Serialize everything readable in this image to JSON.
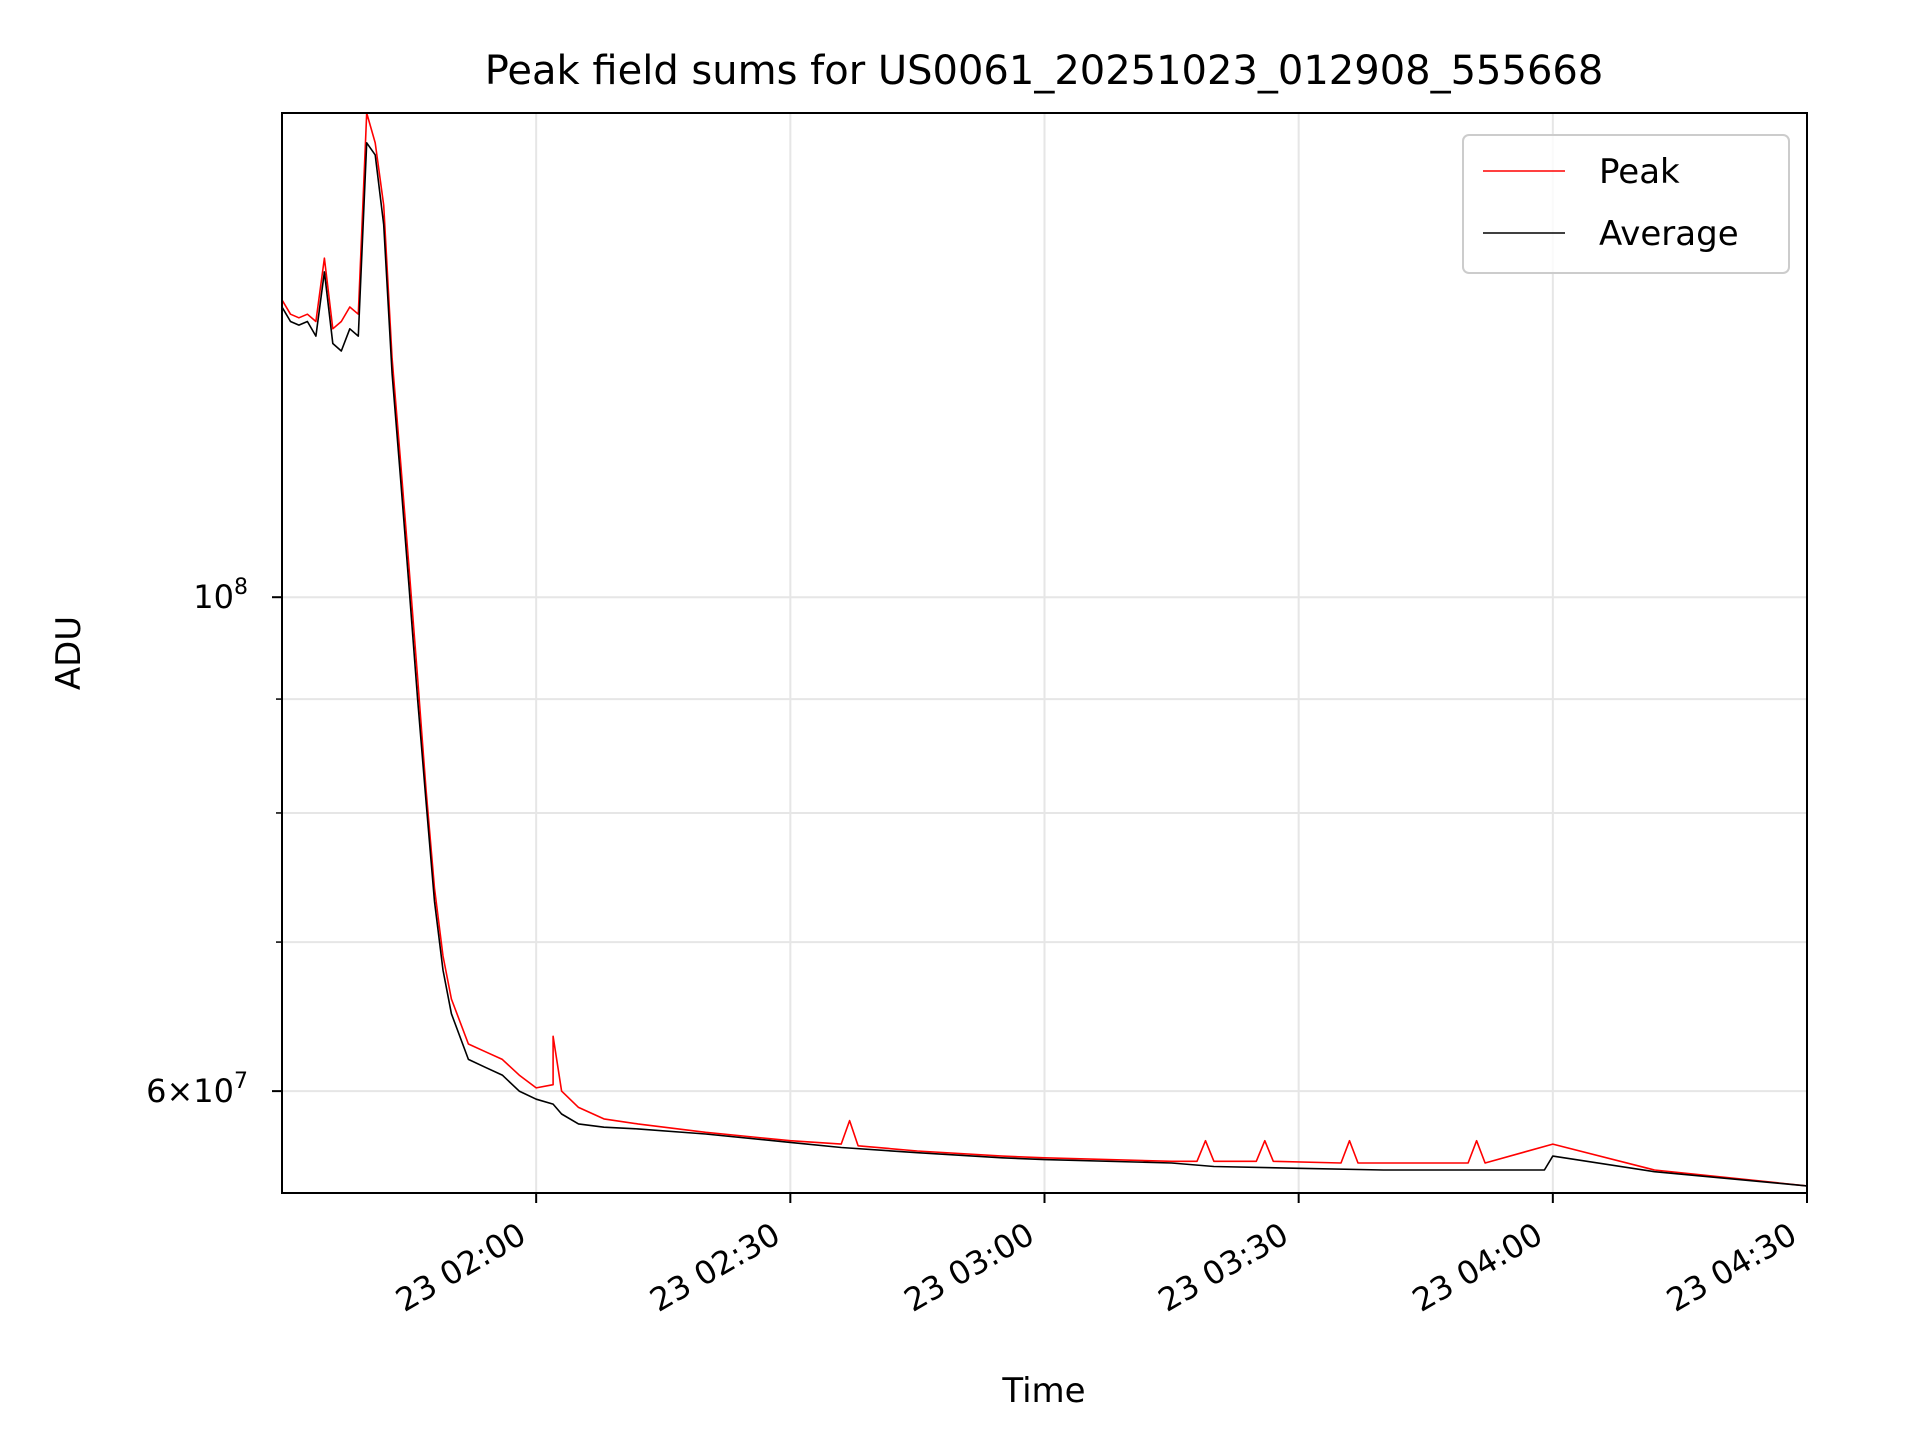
{
  "chart_data": {
    "type": "line",
    "title": "Peak field sums for US0061_20251023_012908_555668",
    "xlabel": "Time",
    "ylabel": "ADU",
    "yscale": "log",
    "xlim": [
      "2025-10-23T01:30",
      "2025-10-23T04:30"
    ],
    "ylim": [
      54000000,
      165000000
    ],
    "x_ticks": [
      {
        "value": "2025-10-23T02:00",
        "label": "23 02:00"
      },
      {
        "value": "2025-10-23T02:30",
        "label": "23 02:30"
      },
      {
        "value": "2025-10-23T03:00",
        "label": "23 03:00"
      },
      {
        "value": "2025-10-23T03:30",
        "label": "23 03:30"
      },
      {
        "value": "2025-10-23T04:00",
        "label": "23 04:00"
      },
      {
        "value": "2025-10-23T04:30",
        "label": "23 04:30"
      }
    ],
    "y_major_ticks": [
      {
        "value": 100000000,
        "mantissa": "",
        "base": "10",
        "exp": "8"
      },
      {
        "value": 60000000,
        "mantissa": "6×",
        "base": "10",
        "exp": "7"
      }
    ],
    "y_minor_gridlines": [
      70000000,
      80000000,
      90000000
    ],
    "grid": true,
    "legend_position": "top-right",
    "series": [
      {
        "name": "Peak",
        "color": "#ff0000",
        "x": [
          "2025-10-23T01:30",
          "2025-10-23T01:31",
          "2025-10-23T01:32",
          "2025-10-23T01:33",
          "2025-10-23T01:34",
          "2025-10-23T01:35",
          "2025-10-23T01:36",
          "2025-10-23T01:37",
          "2025-10-23T01:38",
          "2025-10-23T01:39",
          "2025-10-23T01:40",
          "2025-10-23T01:41",
          "2025-10-23T01:42",
          "2025-10-23T01:43",
          "2025-10-23T01:44",
          "2025-10-23T01:45",
          "2025-10-23T01:46",
          "2025-10-23T01:47",
          "2025-10-23T01:48",
          "2025-10-23T01:49",
          "2025-10-23T01:50",
          "2025-10-23T01:52",
          "2025-10-23T01:54",
          "2025-10-23T01:56",
          "2025-10-23T01:58",
          "2025-10-23T02:00",
          "2025-10-23T02:02",
          "2025-10-23T02:02",
          "2025-10-23T02:03",
          "2025-10-23T02:05",
          "2025-10-23T02:08",
          "2025-10-23T02:12",
          "2025-10-23T02:20",
          "2025-10-23T02:30",
          "2025-10-23T02:36",
          "2025-10-23T02:37",
          "2025-10-23T02:38",
          "2025-10-23T02:45",
          "2025-10-23T02:55",
          "2025-10-23T03:00",
          "2025-10-23T03:15",
          "2025-10-23T03:18",
          "2025-10-23T03:19",
          "2025-10-23T03:20",
          "2025-10-23T03:25",
          "2025-10-23T03:26",
          "2025-10-23T03:27",
          "2025-10-23T03:35",
          "2025-10-23T03:36",
          "2025-10-23T03:37",
          "2025-10-23T03:50",
          "2025-10-23T03:51",
          "2025-10-23T03:52",
          "2025-10-23T04:00",
          "2025-10-23T04:12",
          "2025-10-23T04:30"
        ],
        "y": [
          136000000,
          134000000,
          133500000,
          134000000,
          133000000,
          142000000,
          132000000,
          133000000,
          135000000,
          134000000,
          165000000,
          160000000,
          150000000,
          128000000,
          115000000,
          103000000,
          92000000,
          82000000,
          74000000,
          69000000,
          66000000,
          63000000,
          62500000,
          62000000,
          61000000,
          60200000,
          60400000,
          63500000,
          60000000,
          59000000,
          58300000,
          58000000,
          57500000,
          57000000,
          56800000,
          58200000,
          56700000,
          56400000,
          56100000,
          56000000,
          55800000,
          55800000,
          57000000,
          55800000,
          55800000,
          57000000,
          55800000,
          55700000,
          57000000,
          55700000,
          55700000,
          57000000,
          55700000,
          56800000,
          55300000,
          54400000
        ]
      },
      {
        "name": "Average",
        "color": "#000000",
        "x": [
          "2025-10-23T01:30",
          "2025-10-23T01:31",
          "2025-10-23T01:32",
          "2025-10-23T01:33",
          "2025-10-23T01:34",
          "2025-10-23T01:35",
          "2025-10-23T01:36",
          "2025-10-23T01:37",
          "2025-10-23T01:38",
          "2025-10-23T01:39",
          "2025-10-23T01:40",
          "2025-10-23T01:41",
          "2025-10-23T01:42",
          "2025-10-23T01:43",
          "2025-10-23T01:44",
          "2025-10-23T01:45",
          "2025-10-23T01:46",
          "2025-10-23T01:47",
          "2025-10-23T01:48",
          "2025-10-23T01:49",
          "2025-10-23T01:50",
          "2025-10-23T01:52",
          "2025-10-23T01:54",
          "2025-10-23T01:56",
          "2025-10-23T01:58",
          "2025-10-23T02:00",
          "2025-10-23T02:02",
          "2025-10-23T02:03",
          "2025-10-23T02:05",
          "2025-10-23T02:08",
          "2025-10-23T02:12",
          "2025-10-23T02:20",
          "2025-10-23T02:30",
          "2025-10-23T02:36",
          "2025-10-23T02:45",
          "2025-10-23T02:55",
          "2025-10-23T03:00",
          "2025-10-23T03:15",
          "2025-10-23T03:20",
          "2025-10-23T03:30",
          "2025-10-23T03:40",
          "2025-10-23T03:59",
          "2025-10-23T04:00",
          "2025-10-23T04:12",
          "2025-10-23T04:30"
        ],
        "y": [
          135000000,
          133000000,
          132500000,
          133000000,
          131000000,
          140000000,
          130000000,
          129000000,
          132000000,
          131000000,
          160000000,
          158000000,
          147000000,
          126000000,
          113000000,
          101000000,
          90000000,
          81000000,
          73000000,
          68000000,
          65000000,
          62000000,
          61500000,
          61000000,
          60000000,
          59500000,
          59200000,
          58600000,
          58000000,
          57800000,
          57700000,
          57400000,
          56900000,
          56600000,
          56300000,
          56000000,
          55900000,
          55700000,
          55500000,
          55400000,
          55300000,
          55300000,
          56100000,
          55200000,
          54400000
        ]
      }
    ]
  }
}
